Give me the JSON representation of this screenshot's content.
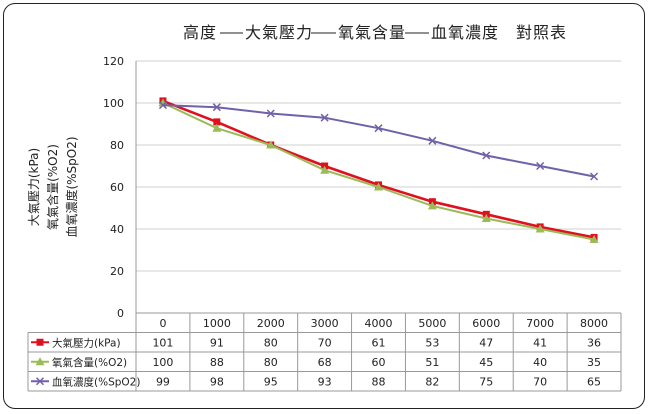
{
  "chart_data": {
    "type": "line",
    "title": "高度—大氣壓力—氧氣含量—血氧濃度 對照表",
    "title_parts": [
      "高度",
      "大氣壓力",
      "氧氣含量",
      "血氧濃度",
      "對照表"
    ],
    "ylabel_lines": [
      "大氣壓力(kPa)",
      "氧氣含量(%O2)",
      "血氧濃度(%SpO2)"
    ],
    "categories": [
      "0",
      "1000",
      "2000",
      "3000",
      "4000",
      "5000",
      "6000",
      "7000",
      "8000"
    ],
    "ylim": [
      0,
      120
    ],
    "yticks": [
      0,
      20,
      40,
      60,
      80,
      100,
      120
    ],
    "grid": true,
    "series": [
      {
        "name": "大氣壓力(kPa)",
        "color": "#e0101e",
        "marker": "square",
        "values": [
          101,
          91,
          80,
          70,
          61,
          53,
          47,
          41,
          36
        ]
      },
      {
        "name": "氧氣含量(%O2)",
        "color": "#9bbb59",
        "marker": "triangle",
        "values": [
          100,
          88,
          80,
          68,
          60,
          51,
          45,
          40,
          35
        ]
      },
      {
        "name": "血氧濃度(%SpO2)",
        "color": "#7161a8",
        "marker": "x",
        "values": [
          99,
          98,
          95,
          93,
          88,
          82,
          75,
          70,
          65
        ]
      }
    ]
  }
}
